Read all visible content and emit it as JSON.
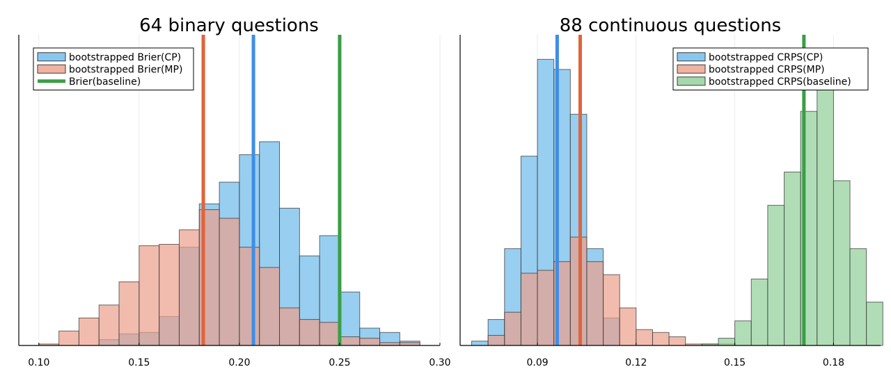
{
  "chart_data": [
    {
      "type": "histogram",
      "title": "64 binary questions",
      "xlabel": "",
      "ylabel": "",
      "xlim": [
        0.09,
        0.3
      ],
      "ylim": [
        0,
        215
      ],
      "xticks": [
        0.1,
        0.15,
        0.2,
        0.25,
        0.3
      ],
      "xtick_labels": [
        "0.10",
        "0.15",
        "0.20",
        "0.25",
        "0.30"
      ],
      "grid": true,
      "legend_position": "top-left",
      "legend": [
        {
          "label": "bootstrapped Brier(CP)",
          "color": "#6cb9ea",
          "kind": "box"
        },
        {
          "label": "bootstrapped Brier(MP)",
          "color": "#eba08a",
          "kind": "box"
        },
        {
          "label": "Brier(baseline)",
          "color": "#3a9e45",
          "kind": "line"
        }
      ],
      "series": [
        {
          "name": "bootstrapped Brier(CP)",
          "kind": "histogram",
          "color": "#6cb9ea",
          "bin_width": 0.01,
          "bin_start": [
            0.13,
            0.14,
            0.15,
            0.16,
            0.17,
            0.18,
            0.19,
            0.2,
            0.21,
            0.22,
            0.23,
            0.24,
            0.25,
            0.26,
            0.27,
            0.28
          ],
          "counts": [
            4,
            8,
            9,
            20,
            68,
            98,
            113,
            132,
            141,
            95,
            62,
            76,
            37,
            12,
            9,
            3
          ]
        },
        {
          "name": "bootstrapped Brier(MP)",
          "kind": "histogram",
          "color": "#eba08a",
          "bin_width": 0.01,
          "bin_start": [
            0.1,
            0.11,
            0.12,
            0.13,
            0.14,
            0.15,
            0.16,
            0.17,
            0.18,
            0.19,
            0.2,
            0.21,
            0.22,
            0.23,
            0.24,
            0.25,
            0.26,
            0.27,
            0.28
          ],
          "counts": [
            1,
            10,
            19,
            28,
            44,
            69,
            70,
            80,
            94,
            88,
            68,
            54,
            26,
            18,
            16,
            6,
            5,
            2,
            2
          ]
        },
        {
          "name": "CP mean",
          "kind": "vline",
          "x": 0.207,
          "color": "#3e8ee6"
        },
        {
          "name": "MP mean",
          "kind": "vline",
          "x": 0.182,
          "color": "#e0643c"
        },
        {
          "name": "Brier(baseline)",
          "kind": "vline",
          "x": 0.25,
          "color": "#3a9e45"
        }
      ]
    },
    {
      "type": "histogram",
      "title": "88 continuous questions",
      "xlabel": "",
      "ylabel": "",
      "xlim": [
        0.0665,
        0.1943
      ],
      "ylim": [
        0,
        215
      ],
      "xticks": [
        0.09,
        0.12,
        0.15,
        0.18
      ],
      "xtick_labels": [
        "0.09",
        "0.12",
        "0.15",
        "0.18"
      ],
      "grid": true,
      "legend_position": "top-right",
      "legend": [
        {
          "label": "bootstrapped CRPS(CP)",
          "color": "#6cb9ea",
          "kind": "box"
        },
        {
          "label": "bootstrapped CRPS(MP)",
          "color": "#eba08a",
          "kind": "box"
        },
        {
          "label": "bootstrapped CRPS(baseline)",
          "color": "#8fce97",
          "kind": "box"
        }
      ],
      "series": [
        {
          "name": "bootstrapped CRPS(CP)",
          "kind": "histogram",
          "color": "#6cb9ea",
          "bin_width": 0.005,
          "bin_start": [
            0.07,
            0.075,
            0.08,
            0.085,
            0.09,
            0.095,
            0.1,
            0.105,
            0.11
          ],
          "counts": [
            3,
            18,
            67,
            131,
            198,
            191,
            160,
            67,
            19
          ]
        },
        {
          "name": "bootstrapped CRPS(MP)",
          "kind": "histogram",
          "color": "#eba08a",
          "bin_width": 0.005,
          "bin_start": [
            0.075,
            0.08,
            0.085,
            0.09,
            0.095,
            0.1,
            0.105,
            0.11,
            0.115,
            0.12,
            0.125,
            0.13,
            0.135,
            0.14,
            0.145
          ],
          "counts": [
            7,
            23,
            50,
            52,
            58,
            75,
            58,
            49,
            26,
            11,
            9,
            6,
            1,
            1,
            1
          ]
        },
        {
          "name": "bootstrapped CRPS(baseline)",
          "kind": "histogram",
          "color": "#8fce97",
          "bin_width": 0.005,
          "bin_start": [
            0.14,
            0.145,
            0.15,
            0.155,
            0.16,
            0.165,
            0.17,
            0.175,
            0.18,
            0.185,
            0.19
          ],
          "counts": [
            1,
            5,
            17,
            46,
            97,
            120,
            162,
            196,
            114,
            67,
            30
          ]
        },
        {
          "name": "CP mean",
          "kind": "vline",
          "x": 0.096,
          "color": "#3e8ee6"
        },
        {
          "name": "MP mean",
          "kind": "vline",
          "x": 0.103,
          "color": "#e0643c"
        },
        {
          "name": "baseline mean",
          "kind": "vline",
          "x": 0.171,
          "color": "#3a9e45"
        }
      ]
    }
  ]
}
